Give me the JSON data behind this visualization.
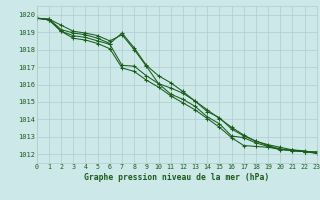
{
  "background_color": "#cce8e8",
  "grid_color": "#b0cccc",
  "line_color": "#1a5c1a",
  "title": "Graphe pression niveau de la mer (hPa)",
  "xlim": [
    0,
    23
  ],
  "ylim": [
    1011.5,
    1020.5
  ],
  "yticks": [
    1012,
    1013,
    1014,
    1015,
    1016,
    1017,
    1018,
    1019,
    1020
  ],
  "xticks": [
    0,
    1,
    2,
    3,
    4,
    5,
    6,
    7,
    8,
    9,
    10,
    11,
    12,
    13,
    14,
    15,
    16,
    17,
    18,
    19,
    20,
    21,
    22,
    23
  ],
  "series": [
    [
      1019.8,
      1019.75,
      1019.4,
      1019.05,
      1018.95,
      1018.8,
      1018.5,
      1018.85,
      1018.0,
      1017.05,
      1016.05,
      1015.45,
      1015.15,
      1014.75,
      1014.15,
      1013.75,
      1013.05,
      1012.95,
      1012.65,
      1012.45,
      1012.25,
      1012.25,
      1012.15,
      1012.15
    ],
    [
      1019.8,
      1019.75,
      1019.15,
      1018.95,
      1018.85,
      1018.65,
      1018.35,
      1018.95,
      1018.1,
      1017.1,
      1016.5,
      1016.1,
      1015.6,
      1015.05,
      1014.45,
      1014.1,
      1013.45,
      1013.05,
      1012.75,
      1012.5,
      1012.3,
      1012.2,
      1012.15,
      1012.1
    ],
    [
      1019.8,
      1019.7,
      1019.05,
      1018.8,
      1018.7,
      1018.5,
      1018.3,
      1017.1,
      1017.05,
      1016.5,
      1016.05,
      1015.8,
      1015.5,
      1015.05,
      1014.55,
      1014.05,
      1013.55,
      1013.1,
      1012.75,
      1012.55,
      1012.4,
      1012.25,
      1012.2,
      1012.05
    ],
    [
      1019.8,
      1019.7,
      1019.05,
      1018.65,
      1018.55,
      1018.35,
      1018.05,
      1016.95,
      1016.75,
      1016.25,
      1015.85,
      1015.35,
      1014.95,
      1014.55,
      1014.05,
      1013.55,
      1012.95,
      1012.5,
      1012.45,
      1012.4,
      1012.3,
      1012.2,
      1012.15,
      1012.05
    ]
  ]
}
